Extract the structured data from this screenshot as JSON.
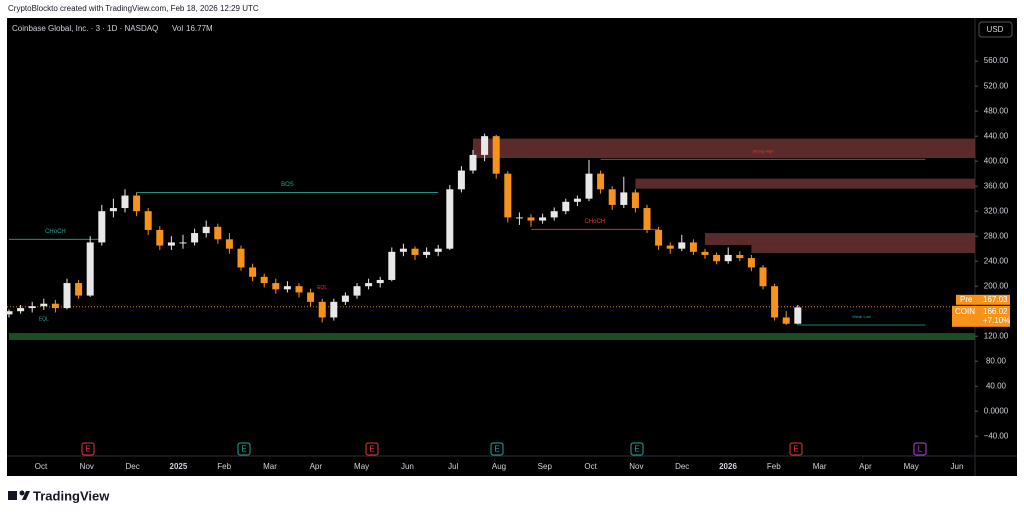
{
  "header": {
    "text": "CryptoBlockto created with TradingView.com, Feb 18, 2026 12:29 UTC"
  },
  "footer": {
    "brand": "TradingView"
  },
  "chart_data": {
    "type": "candlestick",
    "title": "Coinbase Global, Inc. · 3 · 1D · NASDAQ",
    "volume_label": "Vol",
    "volume": "16.77M",
    "currency": "USD",
    "up_color": "#e8e8e8",
    "down_color": "#f7931a",
    "candles": [
      [
        155,
        163,
        150,
        160
      ],
      [
        160,
        170,
        156,
        165
      ],
      [
        165,
        175,
        158,
        168
      ],
      [
        168,
        180,
        162,
        172
      ],
      [
        172,
        178,
        158,
        165
      ],
      [
        165,
        212,
        163,
        205
      ],
      [
        205,
        210,
        180,
        185
      ],
      [
        185,
        280,
        183,
        270
      ],
      [
        270,
        330,
        265,
        320
      ],
      [
        320,
        340,
        310,
        325
      ],
      [
        325,
        355,
        318,
        345
      ],
      [
        345,
        350,
        312,
        320
      ],
      [
        320,
        325,
        282,
        290
      ],
      [
        290,
        296,
        258,
        265
      ],
      [
        265,
        280,
        258,
        270
      ],
      [
        270,
        282,
        260,
        270
      ],
      [
        270,
        292,
        265,
        285
      ],
      [
        285,
        305,
        278,
        295
      ],
      [
        295,
        300,
        268,
        275
      ],
      [
        275,
        285,
        252,
        260
      ],
      [
        260,
        265,
        225,
        230
      ],
      [
        230,
        236,
        208,
        215
      ],
      [
        215,
        220,
        198,
        205
      ],
      [
        205,
        212,
        188,
        195
      ],
      [
        195,
        208,
        190,
        200
      ],
      [
        200,
        205,
        182,
        190
      ],
      [
        190,
        196,
        168,
        175
      ],
      [
        175,
        180,
        142,
        150
      ],
      [
        150,
        180,
        145,
        175
      ],
      [
        175,
        190,
        170,
        185
      ],
      [
        185,
        205,
        180,
        200
      ],
      [
        200,
        212,
        195,
        205
      ],
      [
        205,
        215,
        198,
        210
      ],
      [
        210,
        262,
        208,
        255
      ],
      [
        255,
        268,
        248,
        260
      ],
      [
        260,
        264,
        242,
        250
      ],
      [
        250,
        262,
        245,
        255
      ],
      [
        255,
        266,
        248,
        260
      ],
      [
        260,
        362,
        258,
        355
      ],
      [
        355,
        392,
        350,
        385
      ],
      [
        385,
        418,
        380,
        410
      ],
      [
        410,
        444,
        400,
        440
      ],
      [
        440,
        442,
        372,
        380
      ],
      [
        380,
        384,
        302,
        310
      ],
      [
        310,
        318,
        298,
        310
      ],
      [
        310,
        315,
        295,
        305
      ],
      [
        305,
        316,
        300,
        310
      ],
      [
        310,
        326,
        305,
        320
      ],
      [
        320,
        340,
        315,
        335
      ],
      [
        335,
        345,
        328,
        340
      ],
      [
        340,
        402,
        336,
        380
      ],
      [
        380,
        385,
        348,
        355
      ],
      [
        355,
        360,
        322,
        330
      ],
      [
        330,
        375,
        325,
        350
      ],
      [
        350,
        355,
        318,
        325
      ],
      [
        325,
        330,
        285,
        290
      ],
      [
        290,
        295,
        258,
        265
      ],
      [
        265,
        270,
        252,
        260
      ],
      [
        260,
        282,
        256,
        270
      ],
      [
        270,
        275,
        250,
        255
      ],
      [
        255,
        260,
        244,
        250
      ],
      [
        250,
        254,
        235,
        240
      ],
      [
        240,
        262,
        236,
        250
      ],
      [
        250,
        256,
        240,
        245
      ],
      [
        245,
        250,
        224,
        230
      ],
      [
        230,
        234,
        195,
        200
      ],
      [
        200,
        204,
        145,
        150
      ],
      [
        150,
        160,
        138,
        140
      ],
      [
        140,
        170,
        139,
        166
      ]
    ],
    "ylim": [
      -70,
      629
    ],
    "yticks": [
      {
        "value": -40,
        "label": "−40.00"
      },
      {
        "value": 0,
        "label": "0.0000"
      },
      {
        "value": 40,
        "label": "40.00"
      },
      {
        "value": 80,
        "label": "80.00"
      },
      {
        "value": 120,
        "label": "120.00"
      },
      {
        "value": 160,
        "label": "160.00"
      },
      {
        "value": 200,
        "label": "200.00"
      },
      {
        "value": 240,
        "label": "240.00"
      },
      {
        "value": 280,
        "label": "280.00"
      },
      {
        "value": 320,
        "label": "320.00"
      },
      {
        "value": 360,
        "label": "360.00"
      },
      {
        "value": 400,
        "label": "400.00"
      },
      {
        "value": 440,
        "label": "440.00"
      },
      {
        "value": 480,
        "label": "480.00"
      },
      {
        "value": 520,
        "label": "520.00"
      },
      {
        "value": 560,
        "label": "560.00"
      }
    ],
    "x_labels": [
      "Oct",
      "Nov",
      "Dec",
      "2025",
      "Feb",
      "Mar",
      "Apr",
      "May",
      "Jun",
      "Jul",
      "Aug",
      "Sep",
      "Oct",
      "Nov",
      "Dec",
      "2026",
      "Feb",
      "Mar",
      "Apr",
      "May",
      "Jun"
    ],
    "zones": [
      {
        "low": 405,
        "high": 436,
        "start": 40,
        "color": "#6b3333"
      },
      {
        "low": 356,
        "high": 372,
        "start": 54,
        "color": "#6b3333"
      },
      {
        "low": 266,
        "high": 285,
        "start": 60,
        "color": "#6b3333"
      },
      {
        "low": 253,
        "high": 266,
        "start": 64,
        "color": "#6b3333"
      },
      {
        "low": 114,
        "high": 125,
        "start": 0,
        "color": "#1f5a2a"
      }
    ],
    "levels": [
      {
        "value": 275,
        "start": 0,
        "end": 8,
        "label": "CHoCH",
        "color": "#26a69a"
      },
      {
        "value": 350,
        "start": 11,
        "end": 37,
        "label": "BOS",
        "color": "#26a69a"
      },
      {
        "value": 291,
        "start": 45,
        "end": 56,
        "label": "CHoCH",
        "color": "#e53935"
      },
      {
        "value": 403,
        "start": 51,
        "end": 79,
        "label": "Strong High",
        "color": "#e53935"
      },
      {
        "value": 138,
        "start": 68,
        "end": 79,
        "label": "Weak Low",
        "color": "#26a69a"
      }
    ],
    "notes": [
      {
        "text": "EQL",
        "value": 147,
        "at": 3,
        "color": "#26a69a"
      },
      {
        "text": "EQL",
        "value": 198,
        "at": 27,
        "color": "#e53935"
      }
    ],
    "pre": {
      "label": "Pre",
      "value": 167.03
    },
    "last": {
      "symbol": "COIN",
      "value": 166.02,
      "change": "+7.10%"
    },
    "events": [
      {
        "label": "E",
        "color": "#e53935"
      },
      {
        "label": "E",
        "color": "#26a69a"
      },
      {
        "label": "E",
        "color": "#e53935"
      },
      {
        "label": "E",
        "color": "#26a69a"
      },
      {
        "label": "E",
        "color": "#26a69a"
      },
      {
        "label": "E",
        "color": "#e53935"
      },
      {
        "label": "L",
        "color": "#c040e0"
      }
    ]
  }
}
